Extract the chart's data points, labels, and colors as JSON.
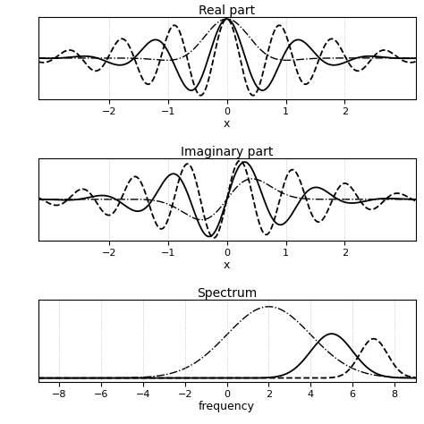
{
  "title_real": "Real part",
  "title_imag": "Imaginary part",
  "title_spec": "Spectrum",
  "xlabel_time": "x",
  "xlabel_freq": "frequency",
  "xlim_time": [
    -3.2,
    3.2
  ],
  "ylim_time": [
    -1.05,
    1.05
  ],
  "xlim_freq": [
    -9,
    9
  ],
  "ylim_freq": [
    -0.05,
    1.1
  ],
  "xticks_time": [
    -2,
    -1,
    0,
    1,
    2
  ],
  "xticks_freq": [
    -8,
    -6,
    -4,
    -2,
    0,
    2,
    4,
    6,
    8
  ],
  "omega0_solid": 5.0,
  "omega0_dash": 7.0,
  "omega0_dotdash": 2.0,
  "sigma_solid": 1.0,
  "sigma_dash": 1.5,
  "sigma_dotdash": 0.5,
  "line_color": "#000000",
  "background_color": "#ffffff",
  "grid_color": "#bbbbbb",
  "title_fontsize": 10,
  "label_fontsize": 9,
  "tick_fontsize": 8
}
